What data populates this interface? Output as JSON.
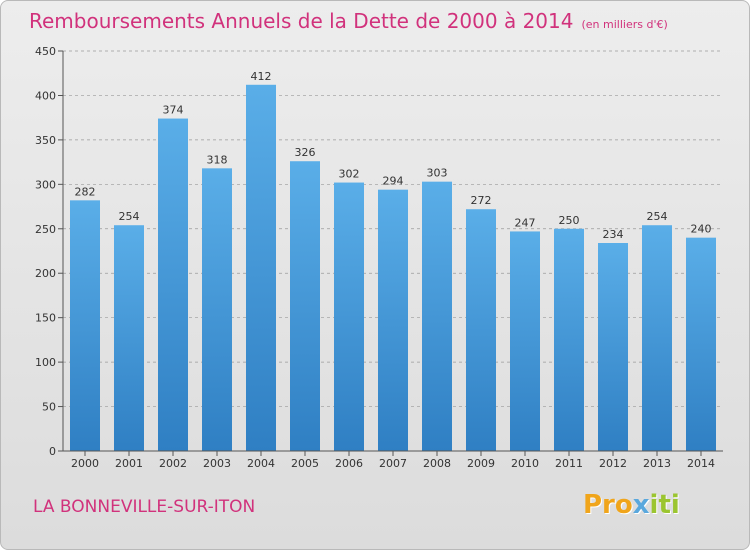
{
  "title": "Remboursements Annuels de la Dette de 2000 à 2014",
  "unit": "(en milliers d'€)",
  "commune": "LA BONNEVILLE-SUR-ITON",
  "logo": {
    "part1": "Pro",
    "part2": "x",
    "part3": "iti"
  },
  "colors": {
    "title": "#d1327c",
    "bar_top": "#5aaee8",
    "bar_bottom": "#2f7fc3"
  },
  "chart_data": {
    "type": "bar",
    "categories": [
      "2000",
      "2001",
      "2002",
      "2003",
      "2004",
      "2005",
      "2006",
      "2007",
      "2008",
      "2009",
      "2010",
      "2011",
      "2012",
      "2013",
      "2014"
    ],
    "values": [
      282,
      254,
      374,
      318,
      412,
      326,
      302,
      294,
      303,
      272,
      247,
      250,
      234,
      254,
      240
    ],
    "ylim": [
      0,
      450
    ],
    "yticks": [
      0,
      50,
      100,
      150,
      200,
      250,
      300,
      350,
      400,
      450
    ],
    "grid": true,
    "data_labels": true
  }
}
